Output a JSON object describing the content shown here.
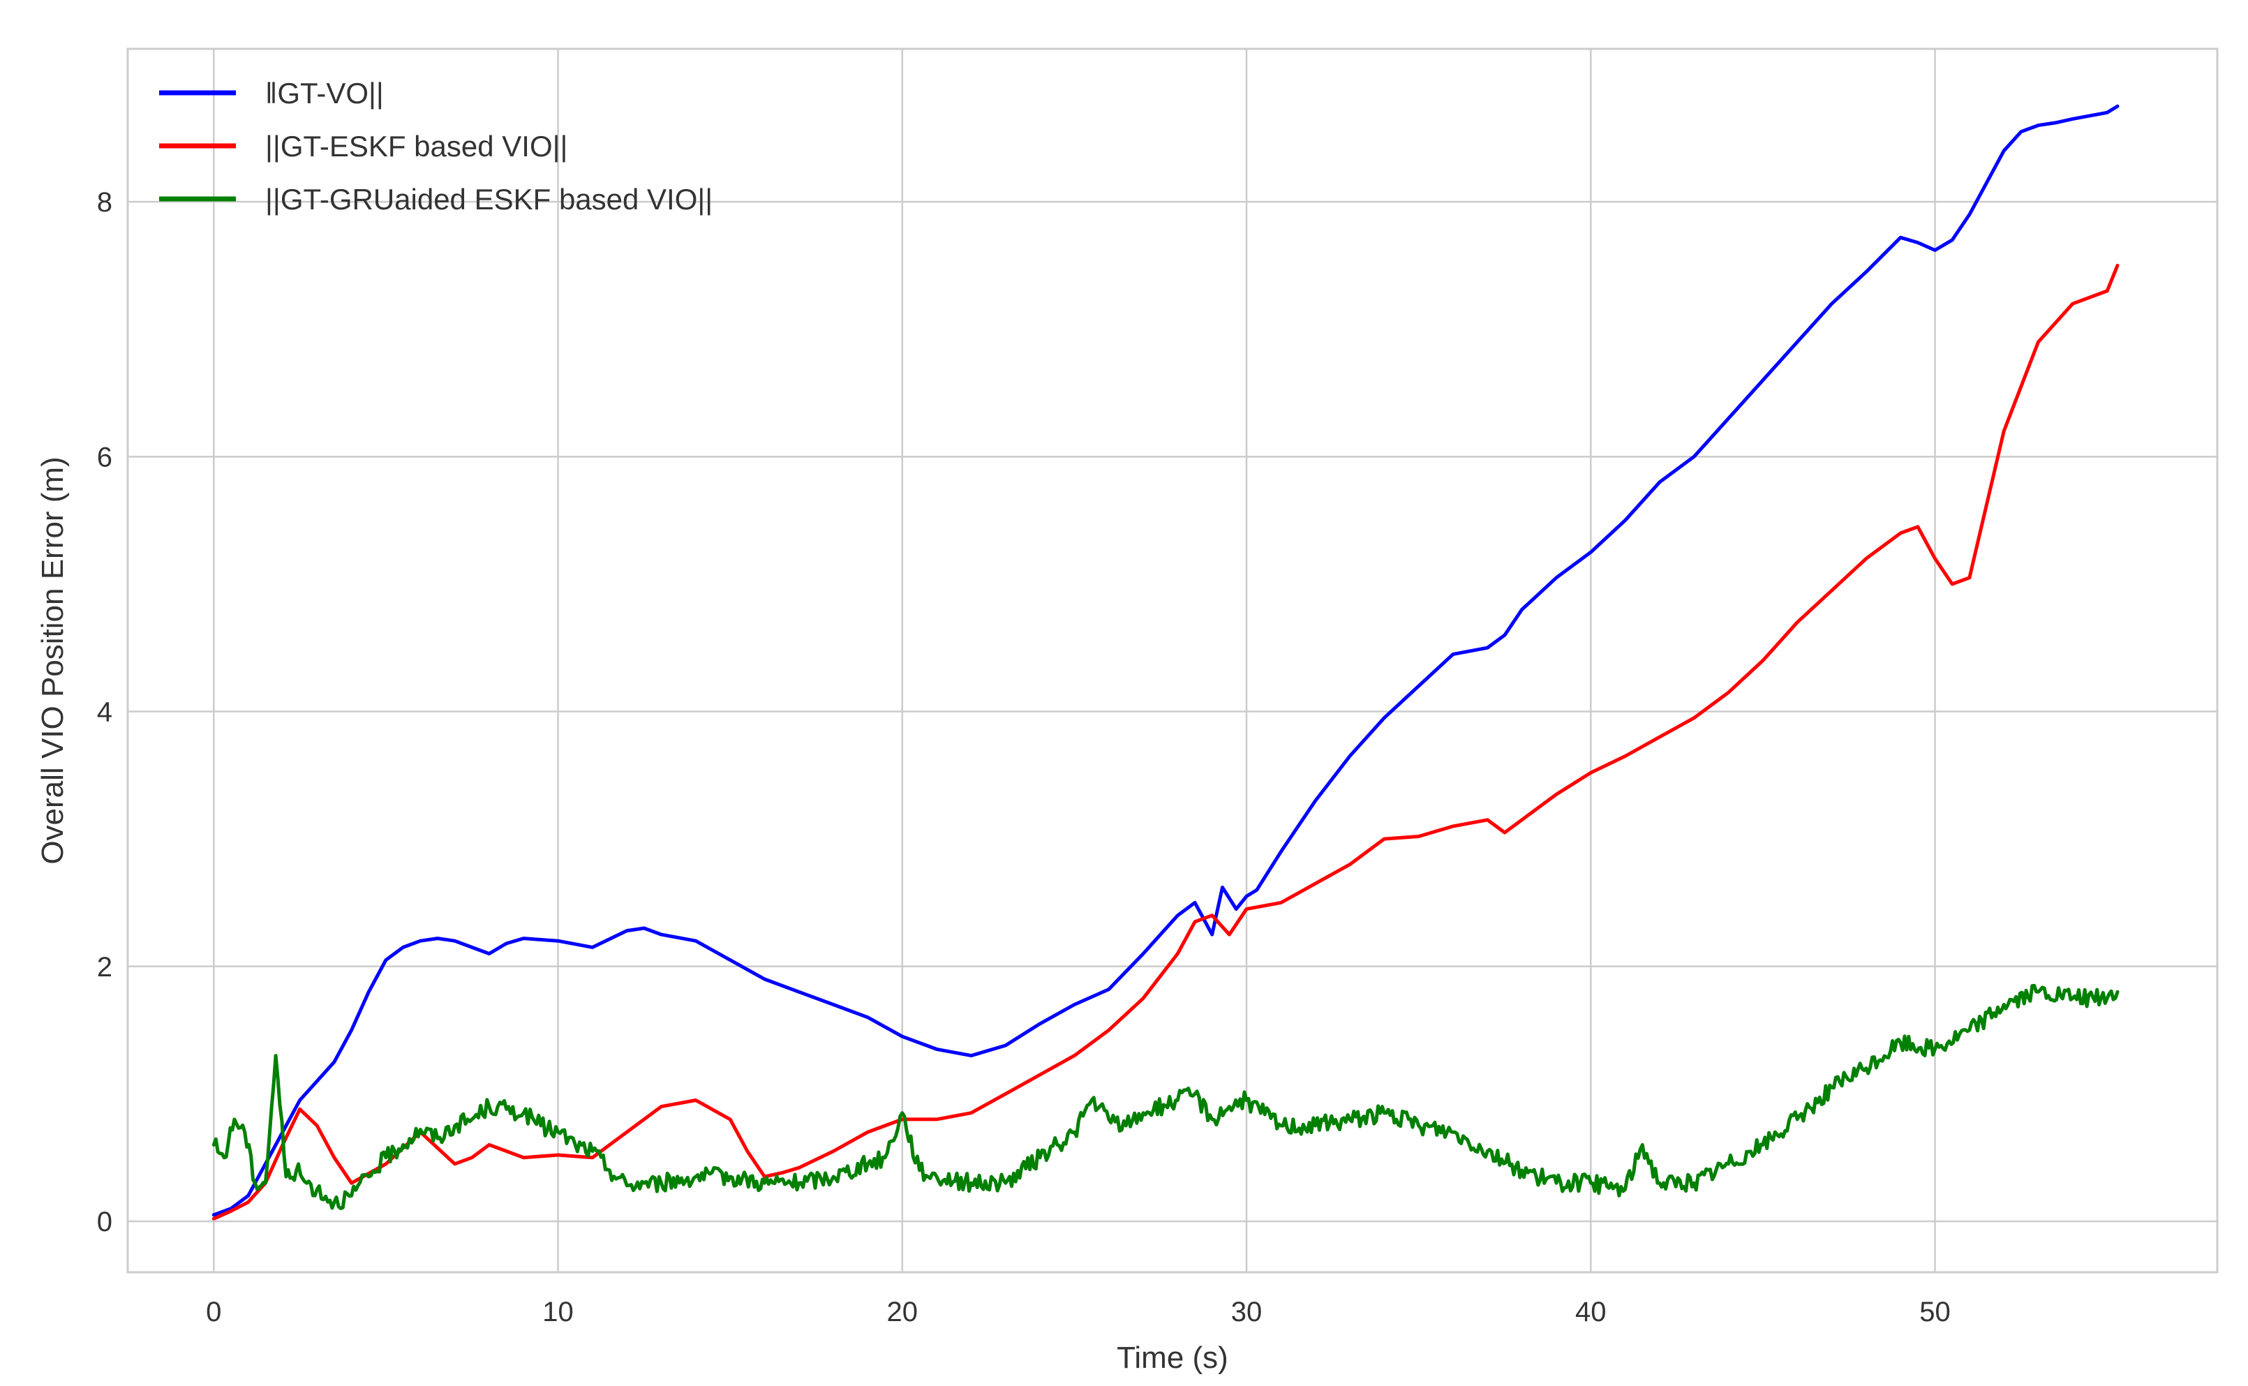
{
  "chart_data": {
    "type": "line",
    "title": "",
    "xlabel": "Time (s)",
    "ylabel": "Overall VIO Position Error (m)",
    "xlim": [
      -2.5,
      58.2
    ],
    "ylim": [
      -0.4,
      9.2
    ],
    "xticks": [
      0,
      10,
      20,
      30,
      40,
      50
    ],
    "yticks": [
      0,
      2,
      4,
      6,
      8
    ],
    "grid": true,
    "legend_position": "top-left",
    "series": [
      {
        "name": "‖GT-VO||",
        "color": "#0000ff",
        "noise": 0,
        "x": [
          0,
          0.5,
          1,
          1.5,
          2,
          2.5,
          3,
          3.5,
          4,
          4.5,
          5,
          5.5,
          6,
          6.5,
          7,
          7.5,
          8,
          8.5,
          9,
          10,
          11,
          12,
          12.5,
          13,
          14,
          15,
          16,
          17,
          18,
          19,
          20,
          21,
          22,
          23,
          24,
          25,
          26,
          27,
          28,
          28.5,
          29,
          29.3,
          29.7,
          30,
          30.3,
          31,
          32,
          33,
          34,
          35,
          36,
          37,
          37.5,
          38,
          39,
          40,
          41,
          42,
          43,
          44,
          45,
          46,
          47,
          48,
          49,
          49.5,
          50,
          50.5,
          51,
          52,
          52.5,
          53,
          53.5,
          54,
          55,
          55.3
        ],
        "y": [
          0.05,
          0.1,
          0.2,
          0.45,
          0.7,
          0.95,
          1.1,
          1.25,
          1.5,
          1.8,
          2.05,
          2.15,
          2.2,
          2.22,
          2.2,
          2.15,
          2.1,
          2.18,
          2.22,
          2.2,
          2.15,
          2.28,
          2.3,
          2.25,
          2.2,
          2.05,
          1.9,
          1.8,
          1.7,
          1.6,
          1.45,
          1.35,
          1.3,
          1.38,
          1.55,
          1.7,
          1.82,
          2.1,
          2.4,
          2.5,
          2.25,
          2.62,
          2.45,
          2.55,
          2.6,
          2.9,
          3.3,
          3.65,
          3.95,
          4.2,
          4.45,
          4.5,
          4.6,
          4.8,
          5.05,
          5.25,
          5.5,
          5.8,
          6.0,
          6.3,
          6.6,
          6.9,
          7.2,
          7.45,
          7.72,
          7.68,
          7.62,
          7.7,
          7.9,
          8.4,
          8.55,
          8.6,
          8.62,
          8.65,
          8.7,
          8.75
        ]
      },
      {
        "name": "||GT-ESKF based VIO||",
        "color": "#ff0000",
        "noise": 0,
        "x": [
          0,
          0.5,
          1,
          1.5,
          2,
          2.5,
          3,
          3.5,
          4,
          5,
          6,
          7,
          7.5,
          8,
          8.5,
          9,
          10,
          11,
          12,
          13,
          14,
          15,
          15.5,
          16,
          16.5,
          17,
          18,
          19,
          20,
          21,
          22,
          23,
          24,
          25,
          26,
          27,
          28,
          28.5,
          29,
          29.5,
          30,
          31,
          32,
          33,
          34,
          35,
          36,
          37,
          37.5,
          38,
          39,
          40,
          41,
          42,
          43,
          44,
          45,
          46,
          47,
          48,
          49,
          49.5,
          50,
          50.5,
          51,
          52,
          53,
          54,
          55,
          55.3
        ],
        "y": [
          0.02,
          0.08,
          0.15,
          0.3,
          0.6,
          0.88,
          0.75,
          0.5,
          0.3,
          0.45,
          0.7,
          0.45,
          0.5,
          0.6,
          0.55,
          0.5,
          0.52,
          0.5,
          0.7,
          0.9,
          0.95,
          0.8,
          0.55,
          0.35,
          0.38,
          0.42,
          0.55,
          0.7,
          0.8,
          0.8,
          0.85,
          1.0,
          1.15,
          1.3,
          1.5,
          1.75,
          2.1,
          2.35,
          2.4,
          2.25,
          2.45,
          2.5,
          2.65,
          2.8,
          3.0,
          3.02,
          3.1,
          3.15,
          3.05,
          3.15,
          3.35,
          3.52,
          3.65,
          3.8,
          3.95,
          4.15,
          4.4,
          4.7,
          4.95,
          5.2,
          5.4,
          5.45,
          5.2,
          5.0,
          5.05,
          6.2,
          6.9,
          7.2,
          7.3,
          7.5
        ]
      },
      {
        "name": "||GT-GRUaided ESKF based VIO||",
        "color": "#008000",
        "noise": 0.07,
        "x": [
          0,
          0.3,
          0.6,
          0.9,
          1.2,
          1.5,
          1.8,
          2.1,
          2.4,
          2.7,
          3,
          3.5,
          4,
          4.5,
          5,
          5.5,
          6,
          6.5,
          7,
          7.5,
          8,
          8.5,
          9,
          9.5,
          10,
          10.5,
          11,
          11.5,
          12,
          12.5,
          13,
          14,
          15,
          16,
          17,
          18,
          19,
          19.5,
          20,
          20.5,
          21,
          22,
          23,
          24,
          24.5,
          25,
          25.5,
          26,
          26.5,
          27,
          28,
          28.5,
          29,
          29.5,
          30,
          31,
          32,
          33,
          34,
          35,
          36,
          37,
          38,
          39,
          40,
          41,
          41.5,
          42,
          43,
          44,
          45,
          46,
          47,
          48,
          49,
          50,
          51,
          52,
          53,
          54,
          55,
          55.3
        ],
        "y": [
          0.6,
          0.5,
          0.8,
          0.7,
          0.3,
          0.3,
          1.3,
          0.35,
          0.4,
          0.3,
          0.25,
          0.15,
          0.2,
          0.35,
          0.5,
          0.6,
          0.72,
          0.65,
          0.75,
          0.8,
          0.9,
          0.88,
          0.85,
          0.75,
          0.7,
          0.6,
          0.55,
          0.4,
          0.28,
          0.3,
          0.3,
          0.35,
          0.35,
          0.3,
          0.3,
          0.35,
          0.45,
          0.5,
          0.85,
          0.4,
          0.35,
          0.3,
          0.3,
          0.5,
          0.6,
          0.7,
          0.95,
          0.8,
          0.75,
          0.85,
          0.95,
          1.0,
          0.8,
          0.9,
          0.95,
          0.75,
          0.75,
          0.8,
          0.85,
          0.75,
          0.7,
          0.55,
          0.4,
          0.3,
          0.3,
          0.25,
          0.6,
          0.3,
          0.3,
          0.45,
          0.6,
          0.8,
          1.05,
          1.2,
          1.4,
          1.35,
          1.5,
          1.7,
          1.8,
          1.75,
          1.75,
          1.8
        ]
      }
    ]
  }
}
